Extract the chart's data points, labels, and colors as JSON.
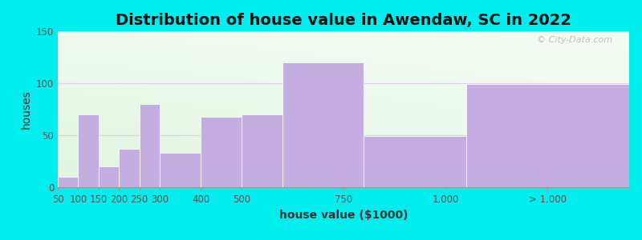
{
  "title": "Distribution of house value in Awendaw, SC in 2022",
  "xlabel": "house value ($1000)",
  "ylabel": "houses",
  "bar_color": "#C4ADE0",
  "outer_bg": "#00EEEE",
  "watermark": "© City-Data.com",
  "ylim": [
    0,
    150
  ],
  "yticks": [
    0,
    50,
    100,
    150
  ],
  "bar_lefts": [
    50,
    100,
    150,
    200,
    250,
    300,
    400,
    500,
    600,
    800,
    1050
  ],
  "bar_widths": [
    50,
    50,
    50,
    50,
    50,
    100,
    100,
    100,
    200,
    250,
    400
  ],
  "bar_heights": [
    10,
    70,
    20,
    37,
    80,
    33,
    68,
    70,
    120,
    49,
    99
  ],
  "xtick_positions": [
    50,
    100,
    150,
    200,
    250,
    300,
    400,
    500,
    750,
    1000,
    1250
  ],
  "xtick_labels": [
    "50",
    "100",
    "150",
    "200",
    "250",
    "300",
    "400",
    "500",
    "750",
    "1,000",
    "> 1,000"
  ],
  "xlim_left": 50,
  "xlim_right": 1450,
  "title_fontsize": 14,
  "axis_fontsize": 10,
  "tick_fontsize": 8.5,
  "grid_color": "#E0D0F0",
  "grid_alpha": 0.8
}
